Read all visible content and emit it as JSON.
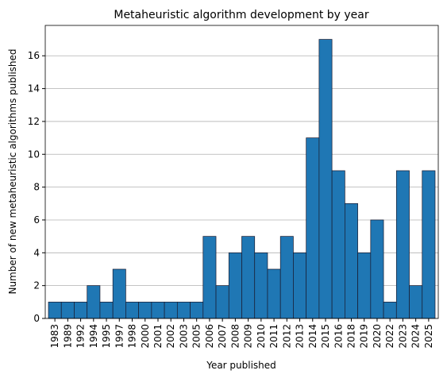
{
  "chart_data": {
    "type": "bar",
    "title": "Metaheuristic algorithm development by year",
    "x_label": "Year published",
    "y_label": "Number of new metaheuristic algorithms published",
    "categories": [
      "1983",
      "1989",
      "1992",
      "1994",
      "1995",
      "1997",
      "1998",
      "2000",
      "2001",
      "2002",
      "2003",
      "2005",
      "2006",
      "2007",
      "2008",
      "2009",
      "2010",
      "2011",
      "2012",
      "2013",
      "2014",
      "2015",
      "2016",
      "2018",
      "2019",
      "2020",
      "2022",
      "2023",
      "2024",
      "2025"
    ],
    "values": [
      1,
      1,
      1,
      2,
      1,
      3,
      1,
      1,
      1,
      1,
      1,
      1,
      5,
      2,
      4,
      5,
      4,
      3,
      5,
      4,
      11,
      17,
      9,
      7,
      4,
      6,
      1,
      9,
      2,
      9
    ],
    "color": "#1f77b4",
    "ylim": [
      0,
      17.85
    ],
    "yticks": [
      0,
      2,
      4,
      6,
      8,
      10,
      12,
      14,
      16
    ],
    "grid": true
  }
}
